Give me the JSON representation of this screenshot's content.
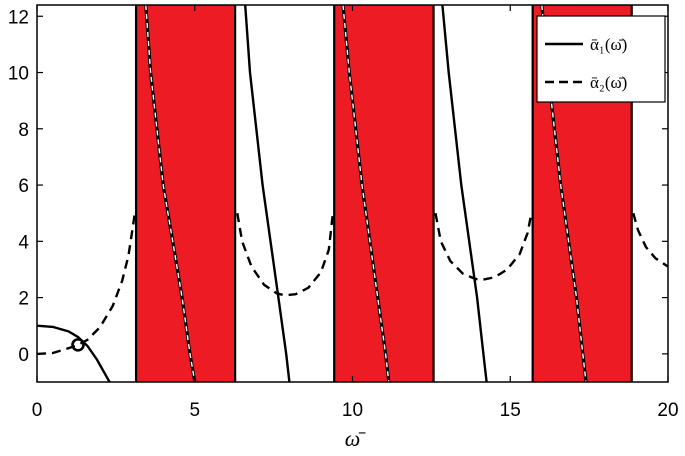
{
  "chart_data": {
    "type": "line",
    "title": "",
    "xlabel": "ω̄",
    "ylabel": "",
    "xlim": [
      0,
      20
    ],
    "ylim": [
      -1,
      12.4
    ],
    "grid": false,
    "legend_position": "top-right",
    "x_ticks": [
      0,
      5,
      10,
      15,
      20
    ],
    "y_ticks": [
      0,
      2,
      4,
      6,
      8,
      10,
      12
    ],
    "x_tick_labels": [
      "0",
      "5",
      "10",
      "15",
      "20"
    ],
    "y_tick_labels": [
      "0",
      "2",
      "4",
      "6",
      "8",
      "10",
      "12"
    ],
    "colors": {
      "band": "#ed1c24",
      "line": "#000000",
      "background": "#ffffff"
    },
    "shaded_bands": [
      [
        3.14,
        6.28
      ],
      [
        9.42,
        12.57
      ],
      [
        15.71,
        18.85
      ]
    ],
    "vertical_lines": [
      3.14,
      6.28,
      9.42,
      12.57,
      15.71,
      18.85
    ],
    "marker": {
      "x": 1.3,
      "y": 0.32
    },
    "series": [
      {
        "name": "ᾱ₁(ω̄)",
        "style": "solid",
        "segments": [
          [
            [
              0,
              1.0
            ],
            [
              0.5,
              0.96
            ],
            [
              1.0,
              0.8
            ],
            [
              1.3,
              0.6
            ],
            [
              1.6,
              0.28
            ],
            [
              1.9,
              -0.2
            ],
            [
              2.15,
              -0.7
            ],
            [
              2.3,
              -1.0
            ]
          ],
          [
            [
              3.45,
              12.4
            ],
            [
              3.6,
              10.0
            ],
            [
              3.8,
              8.0
            ],
            [
              4.0,
              6.0
            ],
            [
              4.3,
              4.0
            ],
            [
              4.6,
              2.0
            ],
            [
              4.85,
              0.0
            ],
            [
              5.0,
              -1.0
            ]
          ],
          [
            [
              6.6,
              12.4
            ],
            [
              6.75,
              10.0
            ],
            [
              6.95,
              8.0
            ],
            [
              7.15,
              6.0
            ],
            [
              7.4,
              4.0
            ],
            [
              7.65,
              2.0
            ],
            [
              7.9,
              0.0
            ],
            [
              8.0,
              -1.0
            ]
          ],
          [
            [
              9.7,
              12.4
            ],
            [
              9.9,
              10.0
            ],
            [
              10.1,
              8.0
            ],
            [
              10.3,
              6.0
            ],
            [
              10.55,
              4.0
            ],
            [
              10.8,
              2.0
            ],
            [
              11.05,
              0.0
            ],
            [
              11.15,
              -1.0
            ]
          ],
          [
            [
              12.85,
              12.4
            ],
            [
              13.05,
              10.0
            ],
            [
              13.25,
              8.0
            ],
            [
              13.45,
              6.0
            ],
            [
              13.7,
              4.0
            ],
            [
              13.95,
              2.0
            ],
            [
              14.15,
              0.0
            ],
            [
              14.25,
              -1.0
            ]
          ],
          [
            [
              16.0,
              12.4
            ],
            [
              16.2,
              10.0
            ],
            [
              16.4,
              8.0
            ],
            [
              16.6,
              6.0
            ],
            [
              16.85,
              4.0
            ],
            [
              17.1,
              2.0
            ],
            [
              17.3,
              0.0
            ],
            [
              17.4,
              -1.0
            ]
          ]
        ]
      },
      {
        "name": "ᾱ₂(ω̄)",
        "style": "dashed",
        "segments": [
          [
            [
              0,
              0.0
            ],
            [
              0.5,
              0.03
            ],
            [
              1.0,
              0.2
            ],
            [
              1.3,
              0.32
            ],
            [
              1.6,
              0.5
            ],
            [
              2.0,
              0.95
            ],
            [
              2.4,
              1.7
            ],
            [
              2.7,
              2.6
            ],
            [
              2.9,
              3.5
            ],
            [
              3.05,
              4.6
            ],
            [
              3.1,
              5.0
            ]
          ],
          [
            [
              3.45,
              12.4
            ],
            [
              3.6,
              10.0
            ],
            [
              3.8,
              8.0
            ],
            [
              4.0,
              6.0
            ],
            [
              4.3,
              4.0
            ],
            [
              4.6,
              2.0
            ],
            [
              4.85,
              0.0
            ],
            [
              5.0,
              -1.0
            ]
          ],
          [
            [
              6.35,
              5.0
            ],
            [
              6.5,
              4.0
            ],
            [
              6.8,
              3.1
            ],
            [
              7.2,
              2.45
            ],
            [
              7.6,
              2.15
            ],
            [
              7.85,
              2.08
            ],
            [
              8.2,
              2.12
            ],
            [
              8.6,
              2.35
            ],
            [
              9.0,
              2.9
            ],
            [
              9.25,
              3.7
            ],
            [
              9.38,
              5.0
            ]
          ],
          [
            [
              9.7,
              12.4
            ],
            [
              9.9,
              10.0
            ],
            [
              10.1,
              8.0
            ],
            [
              10.3,
              6.0
            ],
            [
              10.55,
              4.0
            ],
            [
              10.8,
              2.0
            ],
            [
              11.05,
              0.0
            ],
            [
              11.15,
              -1.0
            ]
          ],
          [
            [
              12.63,
              5.0
            ],
            [
              12.8,
              4.0
            ],
            [
              13.1,
              3.3
            ],
            [
              13.5,
              2.85
            ],
            [
              13.9,
              2.66
            ],
            [
              14.14,
              2.64
            ],
            [
              14.5,
              2.72
            ],
            [
              14.9,
              3.0
            ],
            [
              15.3,
              3.55
            ],
            [
              15.55,
              4.3
            ],
            [
              15.67,
              5.0
            ]
          ],
          [
            [
              16.0,
              12.4
            ],
            [
              16.2,
              10.0
            ],
            [
              16.4,
              8.0
            ],
            [
              16.6,
              6.0
            ],
            [
              16.85,
              4.0
            ],
            [
              17.1,
              2.0
            ],
            [
              17.3,
              0.0
            ],
            [
              17.4,
              -1.0
            ]
          ],
          [
            [
              18.9,
              5.0
            ],
            [
              19.05,
              4.4
            ],
            [
              19.3,
              3.8
            ],
            [
              19.6,
              3.4
            ],
            [
              20.0,
              3.1
            ]
          ]
        ]
      }
    ]
  }
}
